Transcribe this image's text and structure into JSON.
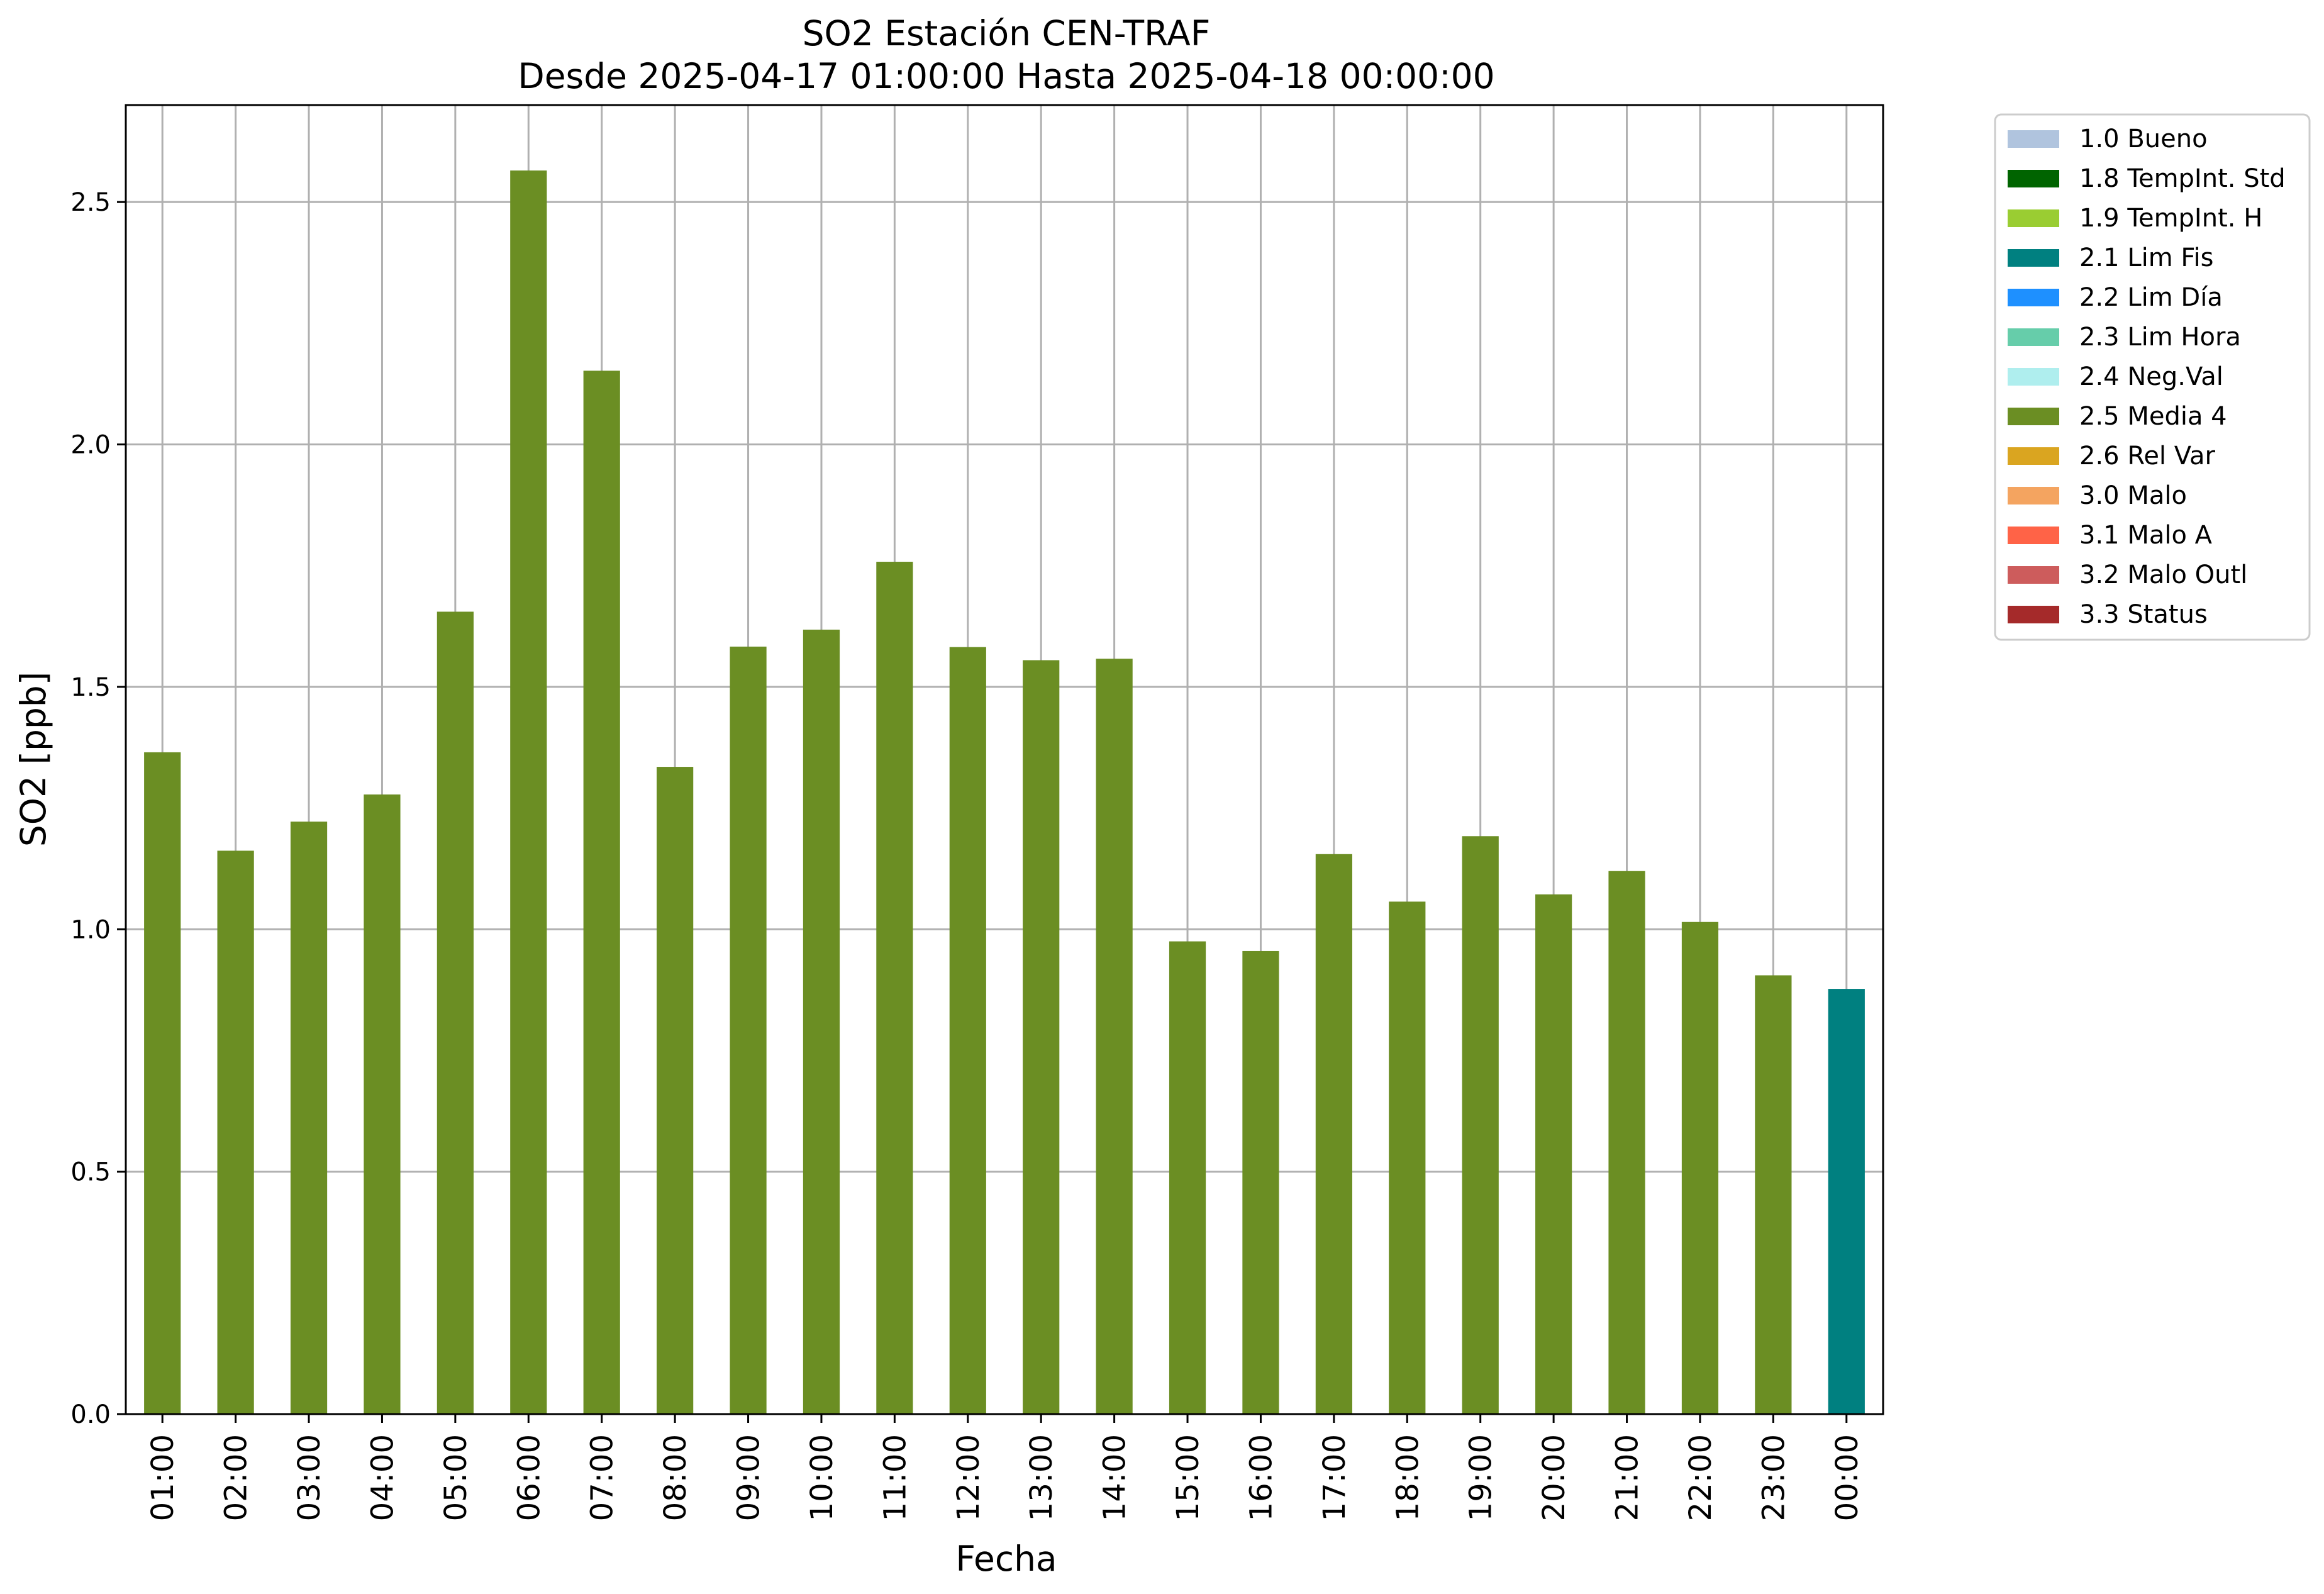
{
  "chart_data": {
    "type": "bar",
    "title": "SO2 Estación CEN-TRAF",
    "subtitle": "Desde 2025-04-17 01:00:00 Hasta 2025-04-18 00:00:00",
    "xlabel": "Fecha",
    "ylabel": "SO2 [ppb]",
    "ylim": [
      0,
      2.7
    ],
    "yticks": [
      "0.0",
      "0.5",
      "1.0",
      "1.5",
      "2.0",
      "2.5"
    ],
    "grid": true,
    "legend_position": "outside-top-right",
    "categories": [
      "01:00",
      "02:00",
      "03:00",
      "04:00",
      "05:00",
      "06:00",
      "07:00",
      "08:00",
      "09:00",
      "10:00",
      "11:00",
      "12:00",
      "13:00",
      "14:00",
      "15:00",
      "16:00",
      "17:00",
      "18:00",
      "19:00",
      "20:00",
      "21:00",
      "22:00",
      "23:00",
      "00:00"
    ],
    "values": [
      1.365,
      1.162,
      1.222,
      1.278,
      1.655,
      2.565,
      2.152,
      1.335,
      1.583,
      1.618,
      1.758,
      1.582,
      1.555,
      1.558,
      0.975,
      0.955,
      1.155,
      1.057,
      1.192,
      1.072,
      1.12,
      1.015,
      0.905,
      0.877
    ],
    "bar_flags": [
      "2.5 Media 4",
      "2.5 Media 4",
      "2.5 Media 4",
      "2.5 Media 4",
      "2.5 Media 4",
      "2.5 Media 4",
      "2.5 Media 4",
      "2.5 Media 4",
      "2.5 Media 4",
      "2.5 Media 4",
      "2.5 Media 4",
      "2.5 Media 4",
      "2.5 Media 4",
      "2.5 Media 4",
      "2.5 Media 4",
      "2.5 Media 4",
      "2.5 Media 4",
      "2.5 Media 4",
      "2.5 Media 4",
      "2.5 Media 4",
      "2.5 Media 4",
      "2.5 Media 4",
      "2.5 Media 4",
      "2.1 Lim Fis"
    ],
    "legend": [
      {
        "label": "1.0 Bueno",
        "color": "#b0c4de"
      },
      {
        "label": "1.8 TempInt. Std",
        "color": "#006400"
      },
      {
        "label": "1.9 TempInt. H",
        "color": "#9acd32"
      },
      {
        "label": "2.1 Lim Fis",
        "color": "#008080"
      },
      {
        "label": "2.2 Lim Día",
        "color": "#1e90ff"
      },
      {
        "label": "2.3 Lim Hora",
        "color": "#66cdaa"
      },
      {
        "label": "2.4 Neg.Val",
        "color": "#afeeee"
      },
      {
        "label": "2.5 Media 4",
        "color": "#6b8e23"
      },
      {
        "label": "2.6 Rel Var",
        "color": "#daa520"
      },
      {
        "label": "3.0 Malo",
        "color": "#f4a460"
      },
      {
        "label": "3.1 Malo A",
        "color": "#ff6347"
      },
      {
        "label": "3.2 Malo Outl",
        "color": "#cd5c5c"
      },
      {
        "label": "3.3 Status",
        "color": "#a52a2a"
      }
    ]
  }
}
